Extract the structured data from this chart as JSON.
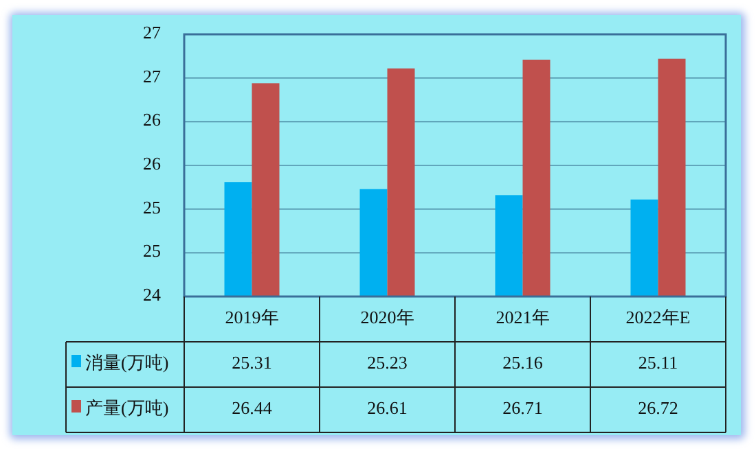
{
  "chart_data": {
    "type": "bar",
    "categories": [
      "2019年",
      "2020年",
      "2021年",
      "2022年E"
    ],
    "series": [
      {
        "name": "消量(万吨)",
        "color": "#00b0f0",
        "values": [
          25.31,
          25.23,
          25.16,
          25.11
        ]
      },
      {
        "name": "产量(万吨)",
        "color": "#c0504d",
        "values": [
          26.44,
          26.61,
          26.71,
          26.72
        ]
      }
    ],
    "ylim": [
      24,
      27
    ],
    "yticks": [
      24,
      {
        "value": 24.5,
        "label": "25"
      },
      25,
      {
        "value": 25.5,
        "label": "26"
      },
      26,
      {
        "value": 26.5,
        "label": "27"
      },
      27
    ],
    "grid": "y",
    "legend": "bottom",
    "data_labels": true
  }
}
